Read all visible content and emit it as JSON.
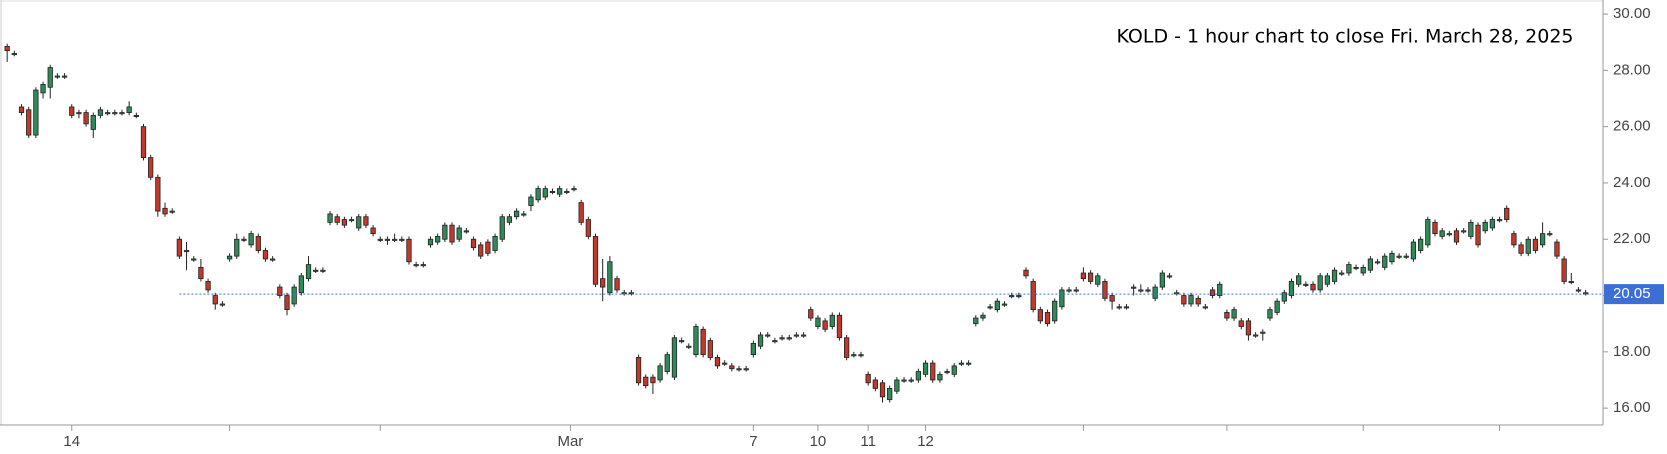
{
  "chart_data": {
    "type": "candlestick",
    "title": "KOLD - 1 hour chart to close Fri. March 28, 2025",
    "up_color": "#2e8b57",
    "down_color": "#c0392b",
    "xlim": [
      -1,
      222
    ],
    "ylim": [
      15.4,
      30.5
    ],
    "yticks": [
      {
        "value": 16,
        "label": "16.00"
      },
      {
        "value": 18,
        "label": "18.00"
      },
      {
        "value": 20,
        "label": "20.00"
      },
      {
        "value": 22,
        "label": "22.00"
      },
      {
        "value": 24,
        "label": "24.00"
      },
      {
        "value": 26,
        "label": "26.00"
      },
      {
        "value": 28,
        "label": "28.00"
      },
      {
        "value": 30,
        "label": "30.00"
      }
    ],
    "xticks": [
      {
        "value": 9,
        "label": "14"
      },
      {
        "value": 78.5,
        "label": "Mar"
      },
      {
        "value": 104,
        "label": "7"
      },
      {
        "value": 113,
        "label": "10"
      },
      {
        "value": 120,
        "label": "11"
      },
      {
        "value": 128,
        "label": "12"
      }
    ],
    "xminorticks": [
      31,
      52,
      150,
      170,
      189,
      208
    ],
    "price_line": {
      "value": 20.05,
      "label": "20.05",
      "x_start": 24,
      "color": "#3b6fd6"
    },
    "ohlc": [
      [
        28.85,
        28.95,
        28.3,
        28.7
      ],
      [
        28.6,
        28.7,
        28.5,
        28.6
      ],
      [
        26.7,
        26.8,
        26.4,
        26.5
      ],
      [
        26.6,
        26.7,
        25.6,
        25.7
      ],
      [
        25.7,
        27.4,
        25.6,
        27.3
      ],
      [
        27.2,
        27.6,
        27.0,
        27.5
      ],
      [
        27.4,
        28.2,
        27.0,
        28.1
      ],
      [
        27.8,
        27.9,
        27.7,
        27.8
      ],
      [
        27.8,
        27.9,
        27.7,
        27.8
      ],
      [
        26.7,
        26.8,
        26.3,
        26.4
      ],
      [
        26.5,
        26.6,
        26.3,
        26.5
      ],
      [
        26.5,
        26.6,
        26.0,
        26.1
      ],
      [
        25.9,
        26.5,
        25.6,
        26.4
      ],
      [
        26.4,
        26.7,
        26.3,
        26.6
      ],
      [
        26.5,
        26.6,
        26.4,
        26.5
      ],
      [
        26.5,
        26.6,
        26.4,
        26.5
      ],
      [
        26.5,
        26.6,
        26.4,
        26.5
      ],
      [
        26.5,
        26.9,
        26.4,
        26.7
      ],
      [
        26.4,
        26.5,
        26.3,
        26.4
      ],
      [
        26.0,
        26.1,
        24.8,
        24.9
      ],
      [
        24.9,
        25.0,
        24.1,
        24.2
      ],
      [
        24.2,
        24.3,
        22.8,
        23.0
      ],
      [
        23.1,
        23.3,
        22.8,
        22.9
      ],
      [
        23.0,
        23.1,
        22.9,
        23.0
      ],
      [
        22.0,
        22.1,
        21.3,
        21.4
      ],
      [
        21.6,
        21.9,
        20.9,
        21.6
      ],
      [
        21.3,
        21.4,
        21.2,
        21.3
      ],
      [
        21.0,
        21.3,
        20.5,
        20.6
      ],
      [
        20.5,
        20.6,
        20.1,
        20.2
      ],
      [
        20.0,
        20.1,
        19.5,
        19.7
      ],
      [
        19.7,
        19.8,
        19.6,
        19.7
      ],
      [
        21.3,
        21.5,
        21.2,
        21.4
      ],
      [
        21.4,
        22.2,
        21.3,
        22.0
      ],
      [
        22.0,
        22.1,
        21.9,
        22.0
      ],
      [
        21.8,
        22.3,
        21.7,
        22.2
      ],
      [
        22.1,
        22.2,
        21.5,
        21.6
      ],
      [
        21.6,
        21.7,
        21.2,
        21.3
      ],
      [
        21.3,
        21.4,
        21.2,
        21.3
      ],
      [
        20.3,
        20.4,
        19.9,
        20.0
      ],
      [
        20.0,
        20.1,
        19.3,
        19.5
      ],
      [
        19.7,
        20.4,
        19.6,
        20.3
      ],
      [
        20.1,
        20.8,
        20.0,
        20.7
      ],
      [
        20.6,
        21.4,
        20.5,
        21.1
      ],
      [
        20.9,
        21.0,
        20.8,
        20.9
      ],
      [
        20.9,
        21.0,
        20.8,
        20.9
      ],
      [
        22.6,
        23.0,
        22.5,
        22.9
      ],
      [
        22.8,
        22.9,
        22.5,
        22.6
      ],
      [
        22.7,
        22.8,
        22.4,
        22.5
      ],
      [
        22.7,
        22.8,
        22.6,
        22.7
      ],
      [
        22.4,
        22.9,
        22.3,
        22.8
      ],
      [
        22.8,
        22.9,
        22.4,
        22.5
      ],
      [
        22.4,
        22.5,
        22.1,
        22.2
      ],
      [
        22.0,
        22.1,
        21.9,
        22.0
      ],
      [
        22.0,
        22.1,
        21.8,
        22.0
      ],
      [
        22.0,
        22.2,
        21.9,
        22.0
      ],
      [
        22.0,
        22.1,
        21.9,
        22.0
      ],
      [
        22.0,
        22.1,
        21.1,
        21.2
      ],
      [
        21.1,
        21.2,
        21.0,
        21.1
      ],
      [
        21.1,
        21.2,
        21.0,
        21.1
      ],
      [
        21.8,
        22.1,
        21.7,
        22.0
      ],
      [
        21.9,
        22.2,
        21.8,
        22.1
      ],
      [
        22.0,
        22.6,
        21.9,
        22.5
      ],
      [
        22.5,
        22.6,
        21.8,
        21.9
      ],
      [
        22.0,
        22.5,
        21.9,
        22.4
      ],
      [
        22.3,
        22.4,
        22.2,
        22.3
      ],
      [
        22.0,
        22.1,
        21.6,
        21.7
      ],
      [
        21.8,
        21.9,
        21.3,
        21.4
      ],
      [
        21.9,
        22.0,
        21.4,
        21.5
      ],
      [
        21.6,
        22.2,
        21.5,
        22.1
      ],
      [
        22.0,
        22.9,
        21.9,
        22.8
      ],
      [
        22.6,
        22.9,
        22.5,
        22.8
      ],
      [
        22.8,
        23.1,
        22.7,
        23.0
      ],
      [
        22.9,
        23.0,
        22.8,
        22.9
      ],
      [
        23.2,
        23.6,
        23.0,
        23.5
      ],
      [
        23.4,
        23.9,
        23.3,
        23.8
      ],
      [
        23.5,
        23.9,
        23.4,
        23.8
      ],
      [
        23.7,
        23.8,
        23.6,
        23.7
      ],
      [
        23.6,
        23.9,
        23.5,
        23.8
      ],
      [
        23.7,
        23.8,
        23.6,
        23.7
      ],
      [
        23.8,
        23.9,
        23.7,
        23.8
      ],
      [
        23.3,
        23.4,
        22.5,
        22.6
      ],
      [
        22.7,
        22.8,
        22.0,
        22.1
      ],
      [
        22.1,
        22.2,
        20.3,
        20.4
      ],
      [
        20.6,
        21.3,
        19.8,
        20.3
      ],
      [
        20.1,
        21.4,
        20.0,
        21.2
      ],
      [
        20.6,
        20.7,
        20.1,
        20.2
      ],
      [
        20.1,
        20.2,
        20.0,
        20.1
      ],
      [
        20.1,
        20.2,
        20.0,
        20.1
      ],
      [
        17.8,
        17.9,
        16.8,
        16.9
      ],
      [
        17.1,
        17.2,
        16.7,
        16.8
      ],
      [
        17.1,
        17.2,
        16.5,
        16.9
      ],
      [
        17.0,
        17.6,
        16.9,
        17.5
      ],
      [
        17.3,
        18.0,
        17.2,
        17.9
      ],
      [
        17.1,
        18.6,
        17.0,
        18.5
      ],
      [
        18.4,
        18.5,
        18.3,
        18.4
      ],
      [
        18.2,
        18.3,
        18.1,
        18.2
      ],
      [
        17.9,
        19.0,
        17.8,
        18.9
      ],
      [
        18.8,
        18.9,
        17.8,
        17.9
      ],
      [
        18.4,
        18.5,
        17.7,
        17.8
      ],
      [
        17.8,
        17.9,
        17.4,
        17.5
      ],
      [
        17.6,
        17.7,
        17.5,
        17.6
      ],
      [
        17.5,
        17.6,
        17.3,
        17.4
      ],
      [
        17.4,
        17.5,
        17.3,
        17.4
      ],
      [
        17.4,
        17.5,
        17.3,
        17.4
      ],
      [
        17.9,
        18.4,
        17.8,
        18.3
      ],
      [
        18.2,
        18.7,
        18.1,
        18.6
      ],
      [
        18.6,
        18.7,
        18.5,
        18.6
      ],
      [
        18.4,
        18.5,
        18.3,
        18.4
      ],
      [
        18.5,
        18.6,
        18.4,
        18.5
      ],
      [
        18.5,
        18.6,
        18.4,
        18.5
      ],
      [
        18.6,
        18.7,
        18.5,
        18.6
      ],
      [
        18.6,
        18.7,
        18.5,
        18.6
      ],
      [
        19.5,
        19.6,
        19.1,
        19.2
      ],
      [
        18.9,
        19.3,
        18.8,
        19.2
      ],
      [
        19.1,
        19.2,
        18.7,
        18.8
      ],
      [
        18.9,
        19.4,
        18.8,
        19.3
      ],
      [
        19.3,
        19.4,
        18.4,
        18.5
      ],
      [
        18.5,
        18.6,
        17.7,
        17.8
      ],
      [
        17.9,
        18.0,
        17.8,
        17.9
      ],
      [
        17.9,
        18.0,
        17.8,
        17.9
      ],
      [
        17.2,
        17.3,
        16.8,
        16.9
      ],
      [
        17.0,
        17.1,
        16.6,
        16.7
      ],
      [
        16.9,
        17.0,
        16.2,
        16.4
      ],
      [
        16.3,
        16.8,
        16.2,
        16.7
      ],
      [
        16.6,
        17.1,
        16.5,
        17.0
      ],
      [
        17.0,
        17.1,
        16.9,
        17.0
      ],
      [
        17.0,
        17.1,
        16.9,
        17.0
      ],
      [
        17.0,
        17.4,
        16.9,
        17.3
      ],
      [
        17.2,
        17.7,
        17.1,
        17.6
      ],
      [
        17.6,
        17.7,
        16.9,
        17.0
      ],
      [
        17.0,
        17.3,
        16.9,
        17.2
      ],
      [
        17.3,
        17.4,
        17.2,
        17.3
      ],
      [
        17.2,
        17.6,
        17.1,
        17.5
      ],
      [
        17.6,
        17.7,
        17.5,
        17.6
      ],
      [
        17.6,
        17.7,
        17.5,
        17.6
      ],
      [
        19.0,
        19.3,
        18.9,
        19.2
      ],
      [
        19.2,
        19.4,
        19.1,
        19.3
      ],
      [
        19.6,
        19.7,
        19.5,
        19.6
      ],
      [
        19.5,
        19.9,
        19.4,
        19.8
      ],
      [
        19.7,
        19.8,
        19.6,
        19.7
      ],
      [
        20.0,
        20.1,
        19.9,
        20.0
      ],
      [
        20.0,
        20.1,
        19.9,
        20.0
      ],
      [
        20.9,
        21.0,
        20.6,
        20.7
      ],
      [
        20.5,
        20.6,
        19.4,
        19.5
      ],
      [
        19.5,
        19.6,
        19.0,
        19.1
      ],
      [
        19.4,
        19.5,
        18.9,
        19.0
      ],
      [
        19.1,
        19.9,
        19.0,
        19.8
      ],
      [
        19.6,
        20.3,
        19.5,
        20.2
      ],
      [
        20.2,
        20.3,
        20.1,
        20.2
      ],
      [
        20.2,
        20.3,
        20.1,
        20.2
      ],
      [
        20.8,
        21.0,
        20.5,
        20.6
      ],
      [
        20.8,
        20.9,
        20.4,
        20.5
      ],
      [
        20.4,
        20.8,
        20.3,
        20.7
      ],
      [
        20.5,
        20.6,
        19.8,
        19.9
      ],
      [
        20.0,
        20.1,
        19.5,
        19.8
      ],
      [
        19.6,
        19.7,
        19.5,
        19.6
      ],
      [
        19.6,
        19.7,
        19.5,
        19.6
      ],
      [
        20.3,
        20.4,
        20.0,
        20.3
      ],
      [
        20.2,
        20.4,
        20.1,
        20.2
      ],
      [
        20.2,
        20.3,
        20.1,
        20.2
      ],
      [
        19.9,
        20.4,
        19.8,
        20.3
      ],
      [
        20.3,
        20.9,
        20.2,
        20.8
      ],
      [
        20.7,
        20.8,
        20.6,
        20.7
      ],
      [
        20.1,
        20.2,
        20.0,
        20.1
      ],
      [
        20.0,
        20.1,
        19.6,
        19.7
      ],
      [
        19.7,
        20.1,
        19.6,
        20.0
      ],
      [
        19.9,
        20.0,
        19.6,
        19.7
      ],
      [
        19.6,
        19.7,
        19.5,
        19.6
      ],
      [
        20.2,
        20.3,
        19.9,
        20.0
      ],
      [
        20.0,
        20.5,
        19.9,
        20.4
      ],
      [
        19.4,
        19.5,
        19.1,
        19.2
      ],
      [
        19.2,
        19.6,
        19.1,
        19.5
      ],
      [
        19.1,
        19.2,
        18.8,
        18.9
      ],
      [
        19.1,
        19.2,
        18.4,
        18.6
      ],
      [
        18.6,
        18.7,
        18.5,
        18.6
      ],
      [
        18.7,
        18.8,
        18.4,
        18.7
      ],
      [
        19.2,
        19.6,
        19.1,
        19.5
      ],
      [
        19.4,
        19.9,
        19.3,
        19.8
      ],
      [
        19.8,
        20.2,
        19.7,
        20.1
      ],
      [
        20.0,
        20.6,
        19.9,
        20.5
      ],
      [
        20.4,
        20.8,
        20.3,
        20.7
      ],
      [
        20.4,
        20.5,
        20.3,
        20.4
      ],
      [
        20.4,
        20.5,
        20.1,
        20.2
      ],
      [
        20.2,
        20.8,
        20.1,
        20.7
      ],
      [
        20.4,
        20.8,
        20.3,
        20.7
      ],
      [
        20.5,
        21.0,
        20.4,
        20.9
      ],
      [
        20.8,
        20.9,
        20.7,
        20.8
      ],
      [
        20.8,
        21.2,
        20.7,
        21.1
      ],
      [
        21.0,
        21.1,
        20.9,
        21.0
      ],
      [
        20.8,
        21.1,
        20.7,
        21.0
      ],
      [
        20.9,
        21.4,
        20.8,
        21.3
      ],
      [
        21.2,
        21.3,
        21.1,
        21.2
      ],
      [
        21.0,
        21.5,
        20.9,
        21.4
      ],
      [
        21.2,
        21.6,
        21.1,
        21.5
      ],
      [
        21.4,
        21.5,
        21.3,
        21.4
      ],
      [
        21.4,
        21.5,
        21.3,
        21.4
      ],
      [
        21.3,
        22.0,
        21.2,
        21.9
      ],
      [
        21.6,
        22.1,
        21.5,
        22.0
      ],
      [
        21.8,
        22.8,
        21.7,
        22.7
      ],
      [
        22.6,
        22.7,
        22.1,
        22.2
      ],
      [
        22.1,
        22.4,
        22.0,
        22.3
      ],
      [
        22.2,
        22.3,
        22.1,
        22.2
      ],
      [
        22.3,
        22.4,
        21.8,
        21.9
      ],
      [
        22.3,
        22.4,
        22.2,
        22.3
      ],
      [
        22.1,
        22.7,
        22.0,
        22.6
      ],
      [
        22.5,
        22.6,
        21.7,
        21.8
      ],
      [
        22.3,
        22.7,
        22.2,
        22.6
      ],
      [
        22.4,
        22.8,
        22.3,
        22.7
      ],
      [
        22.7,
        22.8,
        22.6,
        22.7
      ],
      [
        23.1,
        23.2,
        22.6,
        22.7
      ],
      [
        22.2,
        22.3,
        21.7,
        21.8
      ],
      [
        21.8,
        21.9,
        21.4,
        21.5
      ],
      [
        21.5,
        22.1,
        21.4,
        22.0
      ],
      [
        22.0,
        22.1,
        21.5,
        21.6
      ],
      [
        21.8,
        22.6,
        21.7,
        22.2
      ],
      [
        22.2,
        22.3,
        22.1,
        22.2
      ],
      [
        21.9,
        22.0,
        21.3,
        21.4
      ],
      [
        21.3,
        21.4,
        20.4,
        20.5
      ],
      [
        20.5,
        20.8,
        20.4,
        20.5
      ],
      [
        20.2,
        20.3,
        20.1,
        20.2
      ],
      [
        20.1,
        20.2,
        20.0,
        20.1
      ]
    ]
  }
}
